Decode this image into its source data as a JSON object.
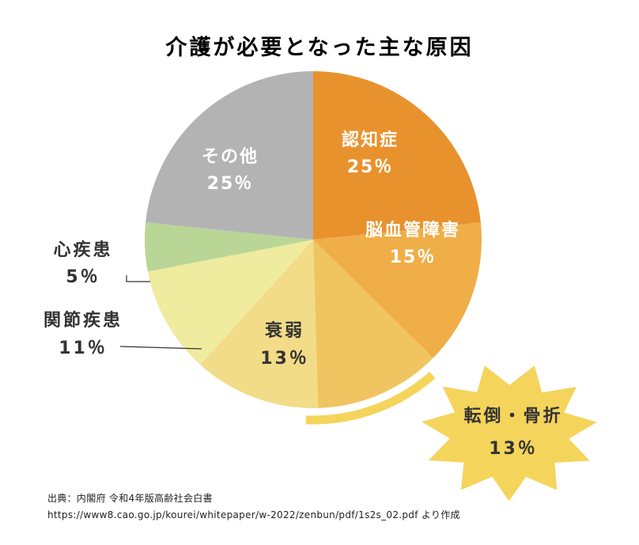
{
  "chart_data": {
    "type": "pie",
    "title": "介護が必要となった主な原因",
    "unit": "%",
    "slices": [
      {
        "name": "認知症",
        "value": 25,
        "value_label": "25％",
        "color": "#e8922e"
      },
      {
        "name": "脳血管障害",
        "value": 15,
        "value_label": "15％",
        "color": "#efae47"
      },
      {
        "name": "転倒・骨折",
        "value": 13,
        "value_label": "13％",
        "color": "#f0c460",
        "highlighted": true
      },
      {
        "name": "衰弱",
        "value": 13,
        "value_label": "13％",
        "color": "#f2dc87"
      },
      {
        "name": "関節疾患",
        "value": 11,
        "value_label": "11％",
        "color": "#efeb9f"
      },
      {
        "name": "心疾患",
        "value": 5,
        "value_label": "5％",
        "color": "#b9d697"
      },
      {
        "name": "その他",
        "value": 25,
        "value_label": "25％",
        "color": "#b3b3b3"
      }
    ],
    "start_angle": "12 o'clock",
    "direction": "clockwise",
    "highlight_color": "#f5d45b"
  },
  "source": {
    "line1": "出典：内閣府 令和4年版高齢社会白書",
    "line2": "https://www8.cao.go.jp/kourei/whitepaper/w-2022/zenbun/pdf/1s2s_02.pdf より作成"
  }
}
